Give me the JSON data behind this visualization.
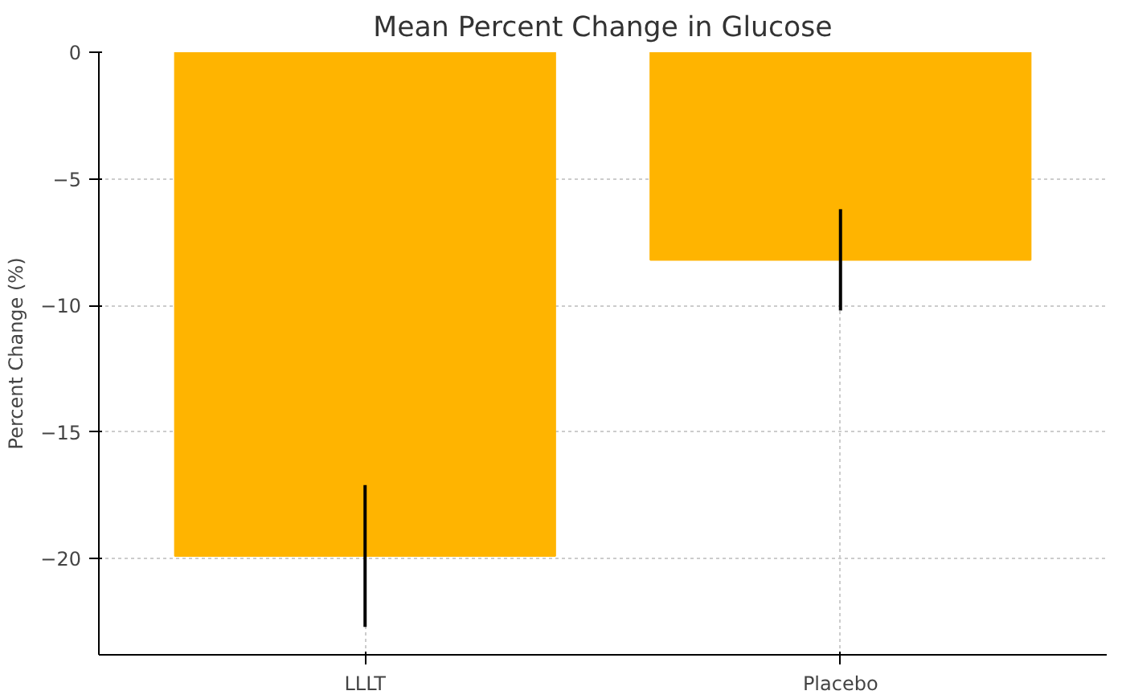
{
  "chart_data": {
    "type": "bar",
    "title": "Mean Percent Change in Glucose",
    "ylabel": "Percent Change (%)",
    "categories": [
      "LLLT",
      "Placebo"
    ],
    "values": [
      -19.9,
      -8.2
    ],
    "errors": [
      2.8,
      2.0
    ],
    "color": "#ffb400",
    "ylim": [
      -23.8,
      0
    ],
    "yticks": [
      0,
      -5,
      -10,
      -15,
      -20
    ],
    "grid": true
  }
}
